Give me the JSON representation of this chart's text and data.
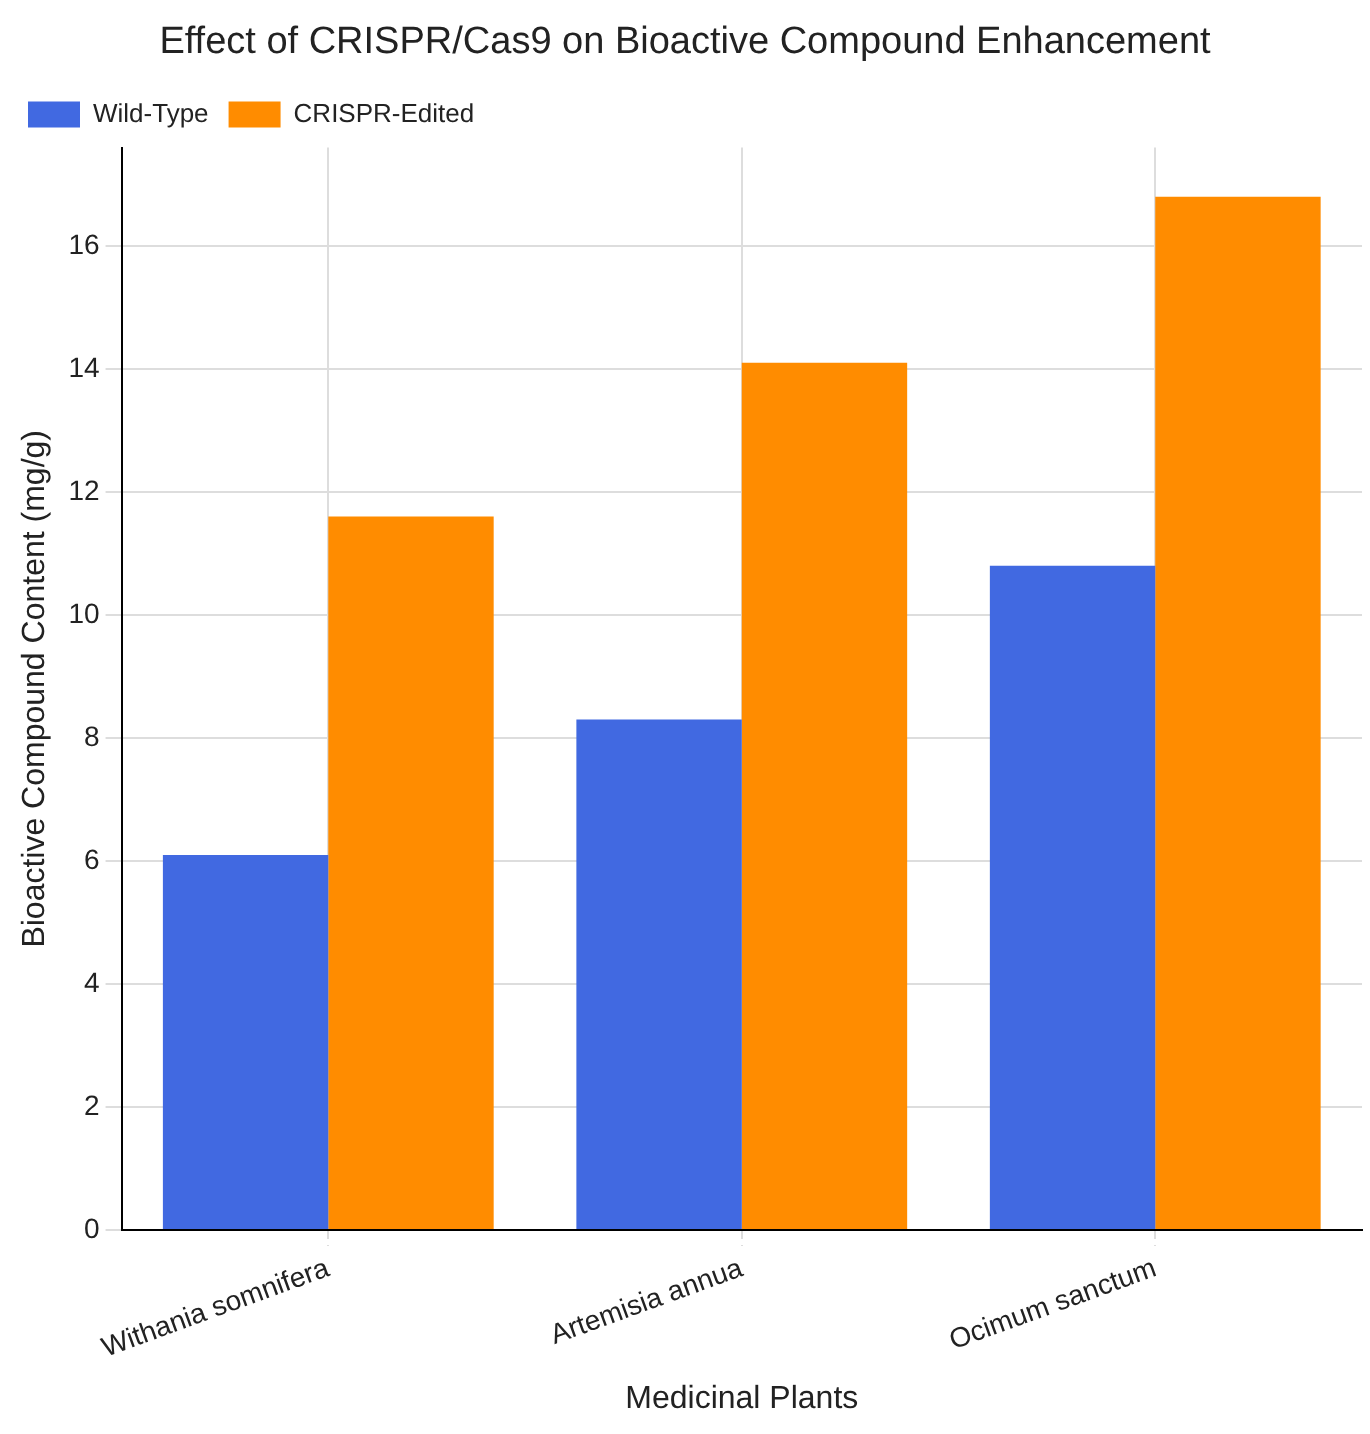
{
  "chart_data": {
    "type": "bar",
    "title": "Effect of CRISPR/Cas9 on Bioactive Compound Enhancement",
    "xlabel": "Medicinal Plants",
    "ylabel": "Bioactive Compound Content (mg/g)",
    "categories": [
      "Withania somnifera",
      "Artemisia annua",
      "Ocimum sanctum"
    ],
    "series": [
      {
        "name": "Wild-Type",
        "color": "#4169e1",
        "values": [
          6.1,
          8.3,
          10.8
        ]
      },
      {
        "name": "CRISPR-Edited",
        "color": "#ff8c00",
        "values": [
          11.6,
          14.1,
          16.8
        ]
      }
    ],
    "ylim": [
      0,
      17.6
    ],
    "yticks": [
      0,
      2,
      4,
      6,
      8,
      10,
      12,
      14,
      16
    ],
    "grid": true,
    "legend": "top left"
  }
}
